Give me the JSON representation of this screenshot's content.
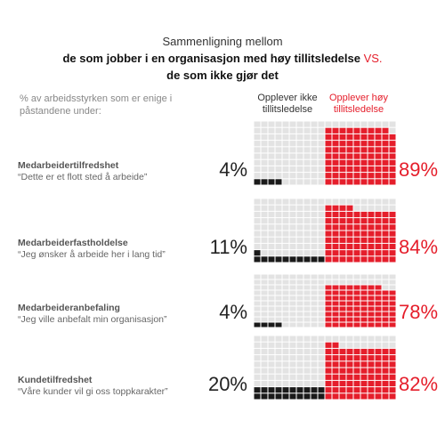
{
  "header": {
    "line1": "Sammenligning mellom",
    "line2_prefix": "de som jobber i en organisasjon med høy tillitsledelse ",
    "line2_vs": "VS.",
    "line3": "de som ikke gjør det"
  },
  "intro": "% av arbeidsstyrken som er enige i påstandene under:",
  "columns": {
    "low_trust": "Opplever ikke tillitsledelse",
    "high_trust": "Opplever høy tillitsledelse"
  },
  "colors": {
    "low_trust_fill": "#1a1a1a",
    "high_trust_fill": "#e51e2b",
    "empty_cell": "#e3e3e3",
    "red_text": "#e51e2b"
  },
  "chart_data": {
    "type": "waffle",
    "grid": {
      "rows": 10,
      "cols": 10
    },
    "series": [
      {
        "name": "Opplever ikke tillitsledelse"
      },
      {
        "name": "Opplever høy tillitsledelse"
      }
    ],
    "rows": [
      {
        "name": "Medarbeidertilfredshet",
        "quote": "“Dette er et flott sted å arbeide”",
        "low": 4,
        "high": 89,
        "low_label": "4%",
        "high_label": "89%"
      },
      {
        "name": "Medarbeiderfastholdelse",
        "quote": "“Jeg ønsker å arbeide her i lang tid”",
        "low": 11,
        "high": 84,
        "low_label": "11%",
        "high_label": "84%"
      },
      {
        "name": "Medarbeideranbefaling",
        "quote": "“Jeg ville anbefalt min organisasjon”",
        "low": 4,
        "high": 78,
        "low_label": "4%",
        "high_label": "78%"
      },
      {
        "name": "Kundetilfredshet",
        "quote": "“Våre kunder vil gi oss toppkarakter”",
        "low": 20,
        "high": 82,
        "low_label": "20%",
        "high_label": "82%"
      }
    ]
  }
}
